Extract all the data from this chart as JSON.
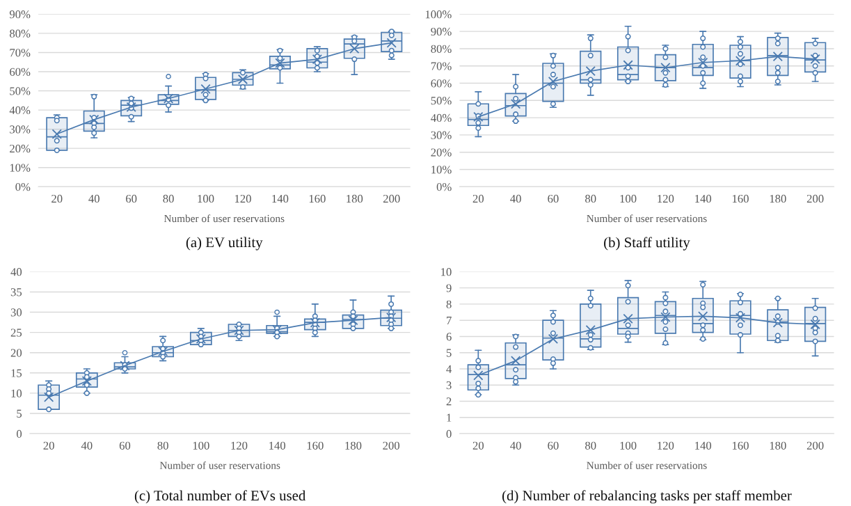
{
  "chart_data": [
    {
      "type": "box",
      "title": "(a) EV utility",
      "xlabel": "Number of user reservations",
      "categories": [
        "20",
        "40",
        "60",
        "80",
        "100",
        "120",
        "140",
        "160",
        "180",
        "200"
      ],
      "ylim": [
        0,
        90
      ],
      "yticks": [
        {
          "value": 0,
          "label": "0%"
        },
        {
          "value": 10,
          "label": "10%"
        },
        {
          "value": 20,
          "label": "20%"
        },
        {
          "value": 30,
          "label": "30%"
        },
        {
          "value": 40,
          "label": "40%"
        },
        {
          "value": 50,
          "label": "50%"
        },
        {
          "value": 60,
          "label": "60%"
        },
        {
          "value": 70,
          "label": "70%"
        },
        {
          "value": 80,
          "label": "80%"
        },
        {
          "value": 90,
          "label": "90%"
        }
      ],
      "grid": "y",
      "legend": false,
      "series": [
        {
          "type": "box",
          "color": "#4a7ab0",
          "boxes": [
            {
              "low": 19,
              "q1": 19,
              "median": 26,
              "q3": 36,
              "high": 37.5,
              "mean": 27.5
            },
            {
              "low": 25.5,
              "q1": 29,
              "median": 33,
              "q3": 39.5,
              "high": 48,
              "mean": 35
            },
            {
              "low": 34,
              "q1": 37,
              "median": 42.5,
              "q3": 45,
              "high": 46.5,
              "mean": 41.5
            },
            {
              "low": 39,
              "q1": 43,
              "median": 45,
              "q3": 48,
              "high": 52.5,
              "mean": 46,
              "outliers": [
                57.5
              ]
            },
            {
              "low": 45,
              "q1": 45.5,
              "median": 50.5,
              "q3": 57,
              "high": 59,
              "mean": 51
            },
            {
              "low": 51,
              "q1": 53,
              "median": 56,
              "q3": 59.5,
              "high": 61,
              "mean": 56
            },
            {
              "low": 54,
              "q1": 61.5,
              "median": 63.5,
              "q3": 68,
              "high": 71.5,
              "mean": 64.5
            },
            {
              "low": 60,
              "q1": 62,
              "median": 65,
              "q3": 72,
              "high": 73,
              "mean": 66.5
            },
            {
              "low": 58.5,
              "q1": 67,
              "median": 74.5,
              "q3": 77,
              "high": 78.5,
              "mean": 72
            },
            {
              "low": 66.5,
              "q1": 70.5,
              "median": 76,
              "q3": 80.5,
              "high": 81,
              "mean": 75
            }
          ]
        },
        {
          "type": "line",
          "color": "#4a7ab0",
          "values": [
            27.5,
            35,
            41.5,
            46,
            51,
            56,
            64.5,
            66.5,
            72,
            75
          ]
        },
        {
          "type": "scatter",
          "color": "#4a7ab0",
          "marker": "circle",
          "x": [
            "20",
            "20",
            "20",
            "20",
            "40",
            "40",
            "40",
            "40",
            "40",
            "60",
            "60",
            "60",
            "60",
            "80",
            "80",
            "100",
            "100",
            "100",
            "100",
            "120",
            "120",
            "140",
            "140",
            "140",
            "160",
            "160",
            "160",
            "160",
            "180",
            "180",
            "180",
            "200",
            "200",
            "200",
            "200"
          ],
          "values": [
            36,
            34.5,
            24,
            19,
            47,
            36,
            33,
            31,
            28,
            46,
            43.5,
            41,
            36.5,
            45.5,
            42.5,
            58.5,
            56.5,
            48,
            45,
            59.5,
            52,
            71,
            67,
            62,
            71,
            68,
            64.5,
            62,
            78,
            76,
            66.5,
            81,
            79,
            71,
            68.5
          ]
        }
      ]
    },
    {
      "type": "box",
      "title": "(b) Staff utility",
      "xlabel": "Number of user reservations",
      "categories": [
        "20",
        "40",
        "60",
        "80",
        "100",
        "120",
        "140",
        "160",
        "180",
        "200"
      ],
      "ylim": [
        0,
        100
      ],
      "yticks": [
        {
          "value": 0,
          "label": "0%"
        },
        {
          "value": 10,
          "label": "10%"
        },
        {
          "value": 20,
          "label": "20%"
        },
        {
          "value": 30,
          "label": "30%"
        },
        {
          "value": 40,
          "label": "40%"
        },
        {
          "value": 50,
          "label": "50%"
        },
        {
          "value": 60,
          "label": "60%"
        },
        {
          "value": 70,
          "label": "70%"
        },
        {
          "value": 80,
          "label": "80%"
        },
        {
          "value": 90,
          "label": "90%"
        },
        {
          "value": 100,
          "label": "100%"
        }
      ],
      "grid": "y",
      "legend": false,
      "series": [
        {
          "type": "box",
          "color": "#4a7ab0",
          "boxes": [
            {
              "low": 29,
              "q1": 35.5,
              "median": 39,
              "q3": 48,
              "high": 55,
              "mean": 40.5
            },
            {
              "low": 38,
              "q1": 41,
              "median": 47,
              "q3": 54,
              "high": 65,
              "mean": 48
            },
            {
              "low": 46,
              "q1": 49.5,
              "median": 60,
              "q3": 71.5,
              "high": 77,
              "mean": 61
            },
            {
              "low": 53,
              "q1": 60,
              "median": 62,
              "q3": 78.5,
              "high": 88,
              "mean": 67
            },
            {
              "low": 61,
              "q1": 62,
              "median": 65,
              "q3": 81,
              "high": 93,
              "mean": 70.5
            },
            {
              "low": 58,
              "q1": 61.5,
              "median": 69,
              "q3": 76.5,
              "high": 82,
              "mean": 69
            },
            {
              "low": 57,
              "q1": 64.5,
              "median": 69,
              "q3": 82.5,
              "high": 90,
              "mean": 72
            },
            {
              "low": 58,
              "q1": 63,
              "median": 73,
              "q3": 82,
              "high": 87,
              "mean": 73
            },
            {
              "low": 59,
              "q1": 64.5,
              "median": 76,
              "q3": 86.5,
              "high": 89,
              "mean": 75.5
            },
            {
              "low": 61,
              "q1": 66.5,
              "median": 73.5,
              "q3": 83.5,
              "high": 86,
              "mean": 74
            }
          ]
        },
        {
          "type": "line",
          "color": "#4a7ab0",
          "values": [
            40.5,
            48,
            61,
            67,
            70.5,
            69,
            72,
            73,
            75.5,
            74
          ]
        },
        {
          "type": "scatter",
          "color": "#4a7ab0",
          "marker": "circle",
          "x": [
            "20",
            "20",
            "20",
            "20",
            "40",
            "40",
            "40",
            "40",
            "60",
            "60",
            "60",
            "60",
            "60",
            "80",
            "80",
            "80",
            "80",
            "100",
            "100",
            "100",
            "100",
            "100",
            "120",
            "120",
            "120",
            "120",
            "120",
            "140",
            "140",
            "140",
            "140",
            "140",
            "140",
            "160",
            "160",
            "160",
            "160",
            "160",
            "160",
            "180",
            "180",
            "180",
            "180",
            "180",
            "200",
            "200",
            "200",
            "200"
          ],
          "values": [
            48,
            41,
            37,
            34,
            58,
            51,
            42,
            38,
            76,
            70,
            65,
            58,
            48,
            86,
            76,
            62,
            59,
            87,
            79,
            69,
            64,
            61,
            80,
            75,
            66,
            62,
            59,
            86,
            81,
            75,
            70,
            66,
            60,
            84,
            81,
            77,
            71,
            64,
            61,
            86,
            83,
            69,
            66,
            61,
            83,
            76,
            70,
            66
          ]
        }
      ]
    },
    {
      "type": "box",
      "title": "(c) Total number of EVs used",
      "xlabel": "Number of user reservations",
      "categories": [
        "20",
        "40",
        "60",
        "80",
        "100",
        "120",
        "140",
        "160",
        "180",
        "200"
      ],
      "ylim": [
        0,
        40
      ],
      "yticks": [
        0,
        5,
        10,
        15,
        20,
        25,
        30,
        35,
        40
      ],
      "grid": "y",
      "legend": false,
      "series": [
        {
          "type": "box",
          "color": "#4a7ab0",
          "boxes": [
            {
              "low": 6,
              "q1": 6,
              "median": 9.5,
              "q3": 12,
              "high": 13,
              "mean": 9
            },
            {
              "low": 10,
              "q1": 11.5,
              "median": 13.5,
              "q3": 15,
              "high": 16,
              "mean": 13
            },
            {
              "low": 15,
              "q1": 16,
              "median": 16.5,
              "q3": 17.5,
              "high": 19,
              "mean": 16.8,
              "outliers": [
                20
              ]
            },
            {
              "low": 18,
              "q1": 19,
              "median": 20,
              "q3": 21.5,
              "high": 24,
              "mean": 20.3
            },
            {
              "low": 22,
              "q1": 22,
              "median": 23,
              "q3": 25,
              "high": 26,
              "mean": 23.4
            },
            {
              "low": 23,
              "q1": 24,
              "median": 25.5,
              "q3": 27,
              "high": 27,
              "mean": 25.5
            },
            {
              "low": 24,
              "q1": 24.8,
              "median": 25.2,
              "q3": 26.7,
              "high": 29,
              "mean": 25.7,
              "outliers": [
                30
              ]
            },
            {
              "low": 24,
              "q1": 25.7,
              "median": 27.5,
              "q3": 28.3,
              "high": 32,
              "mean": 27.4
            },
            {
              "low": 26,
              "q1": 26,
              "median": 28.2,
              "q3": 29.3,
              "high": 33,
              "mean": 28
            },
            {
              "low": 26,
              "q1": 26.7,
              "median": 28.5,
              "q3": 30.5,
              "high": 34,
              "mean": 28.7
            }
          ]
        },
        {
          "type": "line",
          "color": "#4a7ab0",
          "values": [
            9,
            13,
            16.8,
            20.3,
            23.4,
            25.5,
            25.7,
            27.4,
            28,
            28.7
          ]
        },
        {
          "type": "scatter",
          "color": "#4a7ab0",
          "marker": "circle",
          "x": [
            "20",
            "20",
            "20",
            "20",
            "40",
            "40",
            "40",
            "40",
            "60",
            "60",
            "80",
            "80",
            "80",
            "80",
            "100",
            "100",
            "100",
            "100",
            "120",
            "120",
            "120",
            "120",
            "140",
            "140",
            "140",
            "160",
            "160",
            "160",
            "160",
            "160",
            "180",
            "180",
            "180",
            "180",
            "200",
            "200",
            "200",
            "200",
            "200",
            "200"
          ],
          "values": [
            12,
            11,
            10,
            6,
            15,
            14,
            12,
            10,
            17,
            16,
            23,
            21,
            20,
            19,
            25,
            24,
            23,
            22,
            27,
            26,
            25,
            24,
            26,
            25,
            24,
            29,
            28,
            27,
            26,
            25,
            30,
            29,
            27,
            26,
            32,
            30,
            29,
            28,
            27,
            26
          ]
        }
      ]
    },
    {
      "type": "box",
      "title": "(d) Number of rebalancing tasks per staff member",
      "xlabel": "Number of user reservations",
      "categories": [
        "20",
        "40",
        "60",
        "80",
        "100",
        "120",
        "140",
        "160",
        "180",
        "200"
      ],
      "ylim": [
        0,
        10
      ],
      "yticks": [
        0,
        1,
        2,
        3,
        4,
        5,
        6,
        7,
        8,
        9,
        10
      ],
      "grid": "y",
      "legend": false,
      "series": [
        {
          "type": "box",
          "color": "#4a7ab0",
          "boxes": [
            {
              "low": 2.4,
              "q1": 2.7,
              "median": 3.65,
              "q3": 4.25,
              "high": 5.15,
              "mean": 3.6
            },
            {
              "low": 3.0,
              "q1": 3.4,
              "median": 4.25,
              "q3": 5.6,
              "high": 6.1,
              "mean": 4.5
            },
            {
              "low": 4.0,
              "q1": 4.55,
              "median": 5.9,
              "q3": 7.0,
              "high": 7.6,
              "mean": 5.85
            },
            {
              "low": 5.2,
              "q1": 5.35,
              "median": 5.85,
              "q3": 8.0,
              "high": 8.85,
              "mean": 6.4
            },
            {
              "low": 5.65,
              "q1": 6.15,
              "median": 6.5,
              "q3": 8.4,
              "high": 9.45,
              "mean": 7.1
            },
            {
              "low": 5.5,
              "q1": 6.2,
              "median": 7.3,
              "q3": 8.15,
              "high": 8.75,
              "mean": 7.2
            },
            {
              "low": 5.8,
              "q1": 6.25,
              "median": 6.8,
              "q3": 8.35,
              "high": 9.4,
              "mean": 7.25
            },
            {
              "low": 5.0,
              "q1": 6.15,
              "median": 7.3,
              "q3": 8.2,
              "high": 8.65,
              "mean": 7.15
            },
            {
              "low": 5.65,
              "q1": 5.75,
              "median": 6.9,
              "q3": 7.65,
              "high": 8.35,
              "mean": 6.85
            },
            {
              "low": 4.8,
              "q1": 5.7,
              "median": 6.8,
              "q3": 7.8,
              "high": 8.35,
              "mean": 6.75
            }
          ]
        },
        {
          "type": "line",
          "color": "#4a7ab0",
          "values": [
            3.6,
            4.5,
            5.85,
            6.4,
            7.1,
            7.2,
            7.25,
            7.15,
            6.85,
            6.75
          ]
        },
        {
          "type": "scatter",
          "color": "#4a7ab0",
          "marker": "circle",
          "x": [
            "20",
            "20",
            "20",
            "20",
            "20",
            "40",
            "40",
            "40",
            "40",
            "40",
            "60",
            "60",
            "60",
            "60",
            "60",
            "80",
            "80",
            "80",
            "80",
            "80",
            "100",
            "100",
            "100",
            "100",
            "100",
            "120",
            "120",
            "120",
            "120",
            "120",
            "120",
            "140",
            "140",
            "140",
            "140",
            "140",
            "140",
            "160",
            "160",
            "160",
            "160",
            "160",
            "180",
            "180",
            "180",
            "180",
            "180",
            "200",
            "200",
            "200",
            "200",
            "200"
          ],
          "values": [
            4.5,
            4.1,
            3.1,
            2.8,
            2.4,
            6.0,
            5.35,
            3.95,
            3.45,
            3.2,
            7.3,
            6.9,
            6.2,
            4.6,
            4.35,
            8.35,
            7.9,
            6.1,
            5.8,
            5.3,
            9.15,
            8.15,
            6.7,
            6.2,
            6.0,
            8.4,
            8.05,
            7.55,
            6.9,
            6.45,
            5.6,
            9.2,
            8.05,
            7.8,
            6.7,
            6.4,
            5.85,
            8.6,
            8.1,
            7.4,
            6.7,
            6.1,
            8.35,
            7.25,
            6.9,
            6.05,
            5.75,
            7.75,
            7.1,
            6.5,
            6.25,
            5.7
          ]
        }
      ]
    }
  ]
}
